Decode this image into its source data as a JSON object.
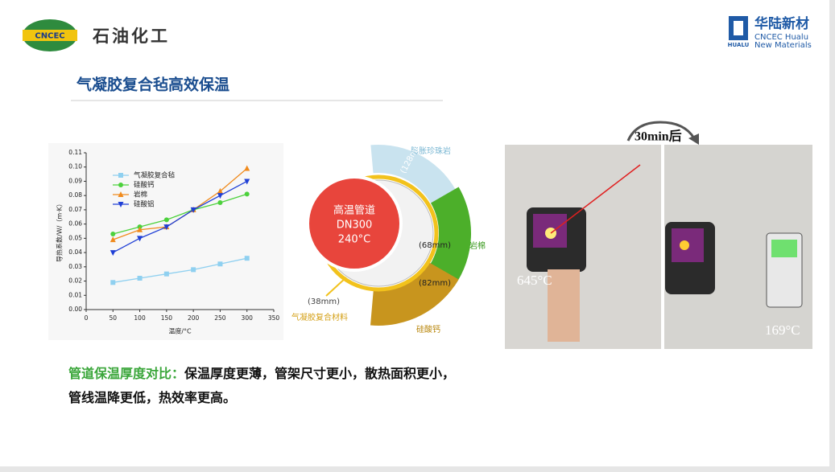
{
  "header": {
    "logo_left": "CNCEC",
    "company": "石油化工",
    "logo_right_icon": "HUALU",
    "brand": "华陆新材",
    "brand_en_1": "CNCEC Hualu",
    "brand_en_2": "New Materials"
  },
  "title": "气凝胶复合毡高效保温",
  "chart_data": {
    "type": "line",
    "x_label": "温度/°C",
    "y_label": "导热系数/W/（m·K）",
    "x": [
      50,
      100,
      150,
      200,
      250,
      300
    ],
    "xlim": [
      0,
      350
    ],
    "xticks": [
      0,
      50,
      100,
      150,
      200,
      250,
      300,
      350
    ],
    "ylim": [
      0,
      0.11
    ],
    "yticks": [
      {
        "value": 0,
        "label": "0.00"
      },
      0.01,
      0.02,
      0.03,
      0.04,
      0.05,
      0.06,
      0.07,
      0.08,
      0.09,
      {
        "value": 0.1,
        "label": "0.10"
      },
      0.11
    ],
    "legend": "upper left",
    "series": [
      {
        "name": "气凝胶复合毡",
        "color": "#8fd0f0",
        "marker": "square",
        "values": [
          0.019,
          0.022,
          0.025,
          0.028,
          0.032,
          0.036
        ]
      },
      {
        "name": "硅酸钙",
        "color": "#4cd13c",
        "marker": "circle",
        "values": [
          0.053,
          0.058,
          0.063,
          0.07,
          0.075,
          0.081
        ]
      },
      {
        "name": "岩棉",
        "color": "#f08a1c",
        "marker": "triangle-up",
        "values": [
          0.049,
          0.056,
          0.058,
          0.07,
          0.083,
          0.099
        ]
      },
      {
        "name": "硅酸铝",
        "color": "#1f3fd6",
        "marker": "triangle-down",
        "values": [
          0.04,
          0.05,
          0.058,
          0.07,
          0.08,
          0.09
        ]
      }
    ]
  },
  "diagram": {
    "core": [
      "高温管道",
      "DN300",
      "240°C"
    ],
    "layers": [
      {
        "name": "膨胀珍珠岩",
        "thickness": "(128mm)"
      },
      {
        "name": "岩棉",
        "thickness": "(68mm)"
      },
      {
        "name": "硅酸钙",
        "thickness": "(82mm)"
      },
      {
        "name": "气凝胶复合材料",
        "thickness": "(38mm)"
      }
    ]
  },
  "photos": {
    "caption": "30min后",
    "before": "645°C",
    "after": "169°C"
  },
  "conclusion": {
    "label": "管道保温厚度对比：",
    "text": "保温厚度更薄，管架尺寸更小，散热面积更小，管线温降更低，热效率更高。"
  }
}
